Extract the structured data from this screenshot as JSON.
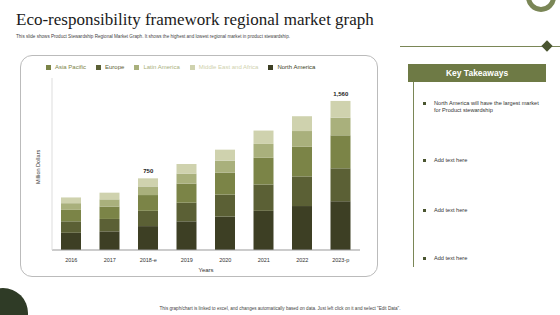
{
  "chart_data": {
    "type": "bar",
    "stacked": true,
    "categories": [
      "2016",
      "2017",
      "2018-e",
      "2019",
      "2020",
      "2021",
      "2022",
      "2023-p"
    ],
    "series": [
      {
        "name": "North America",
        "color": "#3d3f24",
        "values": [
          180,
          195,
          250,
          300,
          350,
          410,
          460,
          510
        ]
      },
      {
        "name": "Europe",
        "color": "#5b6035",
        "values": [
          120,
          130,
          160,
          195,
          230,
          275,
          310,
          345
        ]
      },
      {
        "name": "Asia Pacific",
        "color": "#7b8447",
        "values": [
          120,
          130,
          165,
          200,
          230,
          280,
          310,
          345
        ]
      },
      {
        "name": "Latin America",
        "color": "#a9b07c",
        "values": [
          70,
          75,
          90,
          105,
          125,
          145,
          165,
          185
        ]
      },
      {
        "name": "Middle East and Africa",
        "color": "#cfd2ae",
        "values": [
          60,
          70,
          85,
          100,
          115,
          140,
          155,
          175
        ]
      }
    ],
    "x_label": "Years",
    "y_label": "Million Dollars",
    "ylim": [
      0,
      1800
    ],
    "yticks": [
      0,
      1800
    ],
    "tick_labels": "x",
    "grid": false,
    "legend": "top",
    "annotations": [
      {
        "category": "2018-e",
        "value": 750,
        "label": "750"
      },
      {
        "category": "2023-p",
        "value": 1560,
        "label": "1,560"
      }
    ]
  },
  "slide": {
    "title": "Eco-responsibility framework regional market graph",
    "subtitle": "This slide shows Product Stewardship Regional Market Graph. It shows the highest and lowest regional market in product stewardship.",
    "takeaways_title": "Key Takeaways",
    "takeaways": [
      "North America will have the largest market for Product stewardship",
      "Add text here",
      "Add text here",
      "Add text here"
    ],
    "footer": "This graph/chart is linked to excel, and changes automatically based on data. Just left click on it and select \"Edit Data\"."
  }
}
